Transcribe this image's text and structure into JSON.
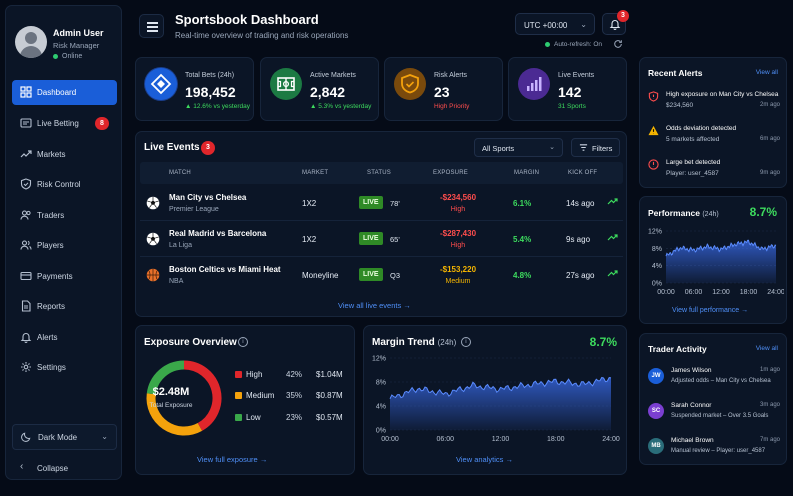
{
  "user": {
    "name": "Admin User",
    "role": "Risk Manager",
    "status": "Online"
  },
  "nav": [
    {
      "label": "Dashboard",
      "icon": "dashboard-icon",
      "active": true
    },
    {
      "label": "Live Betting",
      "icon": "live-betting-icon",
      "badge": "8"
    },
    {
      "label": "Markets",
      "icon": "markets-icon"
    },
    {
      "label": "Risk Control",
      "icon": "shield-icon"
    },
    {
      "label": "Traders",
      "icon": "traders-icon"
    },
    {
      "label": "Players",
      "icon": "players-icon"
    },
    {
      "label": "Payments",
      "icon": "payments-icon"
    },
    {
      "label": "Reports",
      "icon": "reports-icon"
    },
    {
      "label": "Alerts",
      "icon": "bell-icon"
    },
    {
      "label": "Settings",
      "icon": "gear-icon"
    }
  ],
  "theme": {
    "label": "Dark Mode"
  },
  "collapse": {
    "label": "Collapse"
  },
  "header": {
    "title": "Sportsbook Dashboard",
    "subtitle": "Real-time overview of trading and risk operations",
    "timezone": "UTC +00:00",
    "notification_count": "3",
    "auto_refresh": "Auto-refresh: On"
  },
  "kpis": [
    {
      "label": "Total Bets (24h)",
      "value": "198,452",
      "sub": "▲ 12.6% vs yesterday",
      "color": "#1a5ed8",
      "sub_color": "#3ddc5e"
    },
    {
      "label": "Active Markets",
      "value": "2,842",
      "sub": "▲ 5.3% vs yesterday",
      "color": "#1f8f4a",
      "sub_color": "#3ddc5e"
    },
    {
      "label": "Risk Alerts",
      "value": "23",
      "sub": "High Priority",
      "color": "#d4890e",
      "sub_color": "#ff4d4d"
    },
    {
      "label": "Live Events",
      "value": "142",
      "sub": "31 Sports",
      "color": "#6a3fc7",
      "sub_color": "#3ddc5e"
    }
  ],
  "events": {
    "title": "Live Events",
    "count": "3",
    "sport_filter": "All Sports",
    "filters_label": "Filters",
    "columns": [
      "MATCH",
      "MARKET",
      "STATUS",
      "EXPOSURE",
      "MARGIN",
      "KICK OFF"
    ],
    "rows": [
      {
        "match": "Man City vs Chelsea",
        "league": "Premier League",
        "market": "1X2",
        "status": "LIVE",
        "minute": "78'",
        "exposure": "-$234,560",
        "level": "High",
        "level_color": "#ff4d4d",
        "margin": "6.1%",
        "kickoff": "14s ago",
        "sport": "soccer"
      },
      {
        "match": "Real Madrid vs Barcelona",
        "league": "La Liga",
        "market": "1X2",
        "status": "LIVE",
        "minute": "65'",
        "exposure": "-$287,430",
        "level": "High",
        "level_color": "#ff4d4d",
        "margin": "5.4%",
        "kickoff": "9s ago",
        "sport": "soccer"
      },
      {
        "match": "Boston Celtics vs Miami Heat",
        "league": "NBA",
        "market": "Moneyline",
        "status": "LIVE",
        "minute": "Q3",
        "exposure": "-$153,220",
        "level": "Medium",
        "level_color": "#f4b400",
        "margin": "4.8%",
        "kickoff": "27s ago",
        "sport": "basketball"
      }
    ],
    "view_all": "View all live events →"
  },
  "exposure": {
    "title": "Exposure Overview",
    "total": "$2.48M",
    "total_label": "Total Exposure",
    "segments": [
      {
        "name": "High",
        "pct": "42%",
        "value": "$1.04M",
        "share": 42,
        "color": "#e0262b"
      },
      {
        "name": "Medium",
        "pct": "35%",
        "value": "$0.87M",
        "share": 35,
        "color": "#f4a20c"
      },
      {
        "name": "Low",
        "pct": "23%",
        "value": "$0.57M",
        "share": 23,
        "color": "#3aa84a"
      }
    ],
    "view_link": "View full exposure →"
  },
  "margin_trend": {
    "title": "Margin Trend",
    "period": "(24h)",
    "value": "8.7%",
    "view_link": "View analytics →"
  },
  "alerts": {
    "title": "Recent Alerts",
    "view_all": "View all",
    "items": [
      {
        "title": "High exposure on Man City vs Chelsea",
        "sub": "$234,560",
        "time": "2m ago",
        "icon": "shield-alert-icon",
        "color": "#ff4d4d"
      },
      {
        "title": "Odds deviation detected",
        "sub": "5 markets affected",
        "time": "6m ago",
        "icon": "warning-icon",
        "color": "#f4b400"
      },
      {
        "title": "Large bet detected",
        "sub": "Player: user_4587",
        "time": "9m ago",
        "icon": "alert-circle-icon",
        "color": "#ff4d4d"
      }
    ]
  },
  "performance": {
    "title": "Performance",
    "period": "(24h)",
    "value": "8.7%",
    "view_link": "View full performance →"
  },
  "activity": {
    "title": "Trader Activity",
    "view_all": "View all",
    "items": [
      {
        "initials": "JW",
        "name": "James Wilson",
        "desc": "Adjusted odds – Man City vs Chelsea",
        "time": "1m ago",
        "color": "#1a5ed8"
      },
      {
        "initials": "SC",
        "name": "Sarah Connor",
        "desc": "Suspended market – Over 3.5 Goals",
        "time": "3m ago",
        "color": "#7b3fd1"
      },
      {
        "initials": "MB",
        "name": "Michael Brown",
        "desc": "Manual review – Player: user_4587",
        "time": "7m ago",
        "color": "#2a6d7a"
      }
    ]
  },
  "chart_data": [
    {
      "type": "area",
      "title": "Margin Trend",
      "x": [
        "00:00",
        "03:00",
        "06:00",
        "09:00",
        "12:00",
        "15:00",
        "18:00",
        "21:00",
        "24:00"
      ],
      "values": [
        5.2,
        6.9,
        6.0,
        7.4,
        6.8,
        7.5,
        8.1,
        7.6,
        8.7
      ],
      "xticks": [
        "00:00",
        "06:00",
        "12:00",
        "18:00",
        "24:00"
      ],
      "yticks": [
        "0%",
        "4%",
        "8%",
        "12%"
      ],
      "ylim": [
        0,
        12
      ],
      "grid": true,
      "color": "#3b6ef0"
    },
    {
      "type": "area",
      "title": "Performance",
      "x": [
        "00:00",
        "03:00",
        "06:00",
        "09:00",
        "12:00",
        "15:00",
        "18:00",
        "21:00",
        "24:00"
      ],
      "values": [
        6.2,
        8.1,
        7.6,
        8.4,
        7.8,
        8.9,
        9.5,
        7.8,
        8.7
      ],
      "xticks": [
        "00:00",
        "06:00",
        "12:00",
        "18:00",
        "24:00"
      ],
      "yticks": [
        "0%",
        "4%",
        "8%",
        "12%"
      ],
      "ylim": [
        0,
        12
      ],
      "grid": true,
      "color": "#3b6ef0"
    },
    {
      "type": "pie",
      "title": "Exposure Overview",
      "categories": [
        "High",
        "Medium",
        "Low"
      ],
      "values": [
        42,
        35,
        23
      ],
      "colors": [
        "#e0262b",
        "#f4a20c",
        "#3aa84a"
      ]
    }
  ]
}
